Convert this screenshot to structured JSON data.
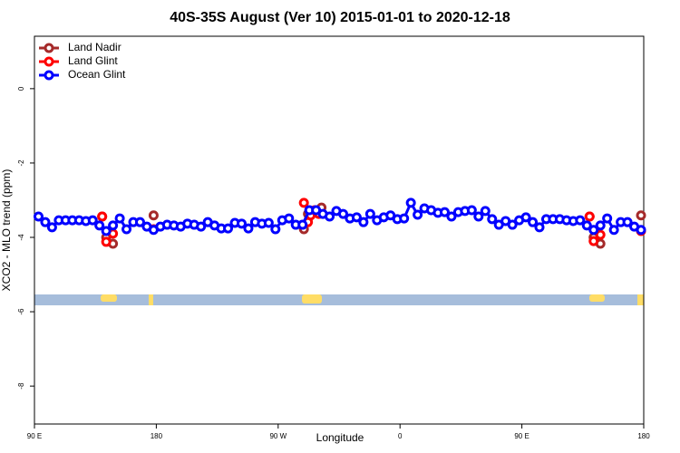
{
  "chart_data": {
    "type": "line",
    "title": "40S-35S August (Ver 10)   2015-01-01 to 2020-12-18",
    "x_label": "Longitude",
    "y_label": "XCO2 - MLO trend (ppm)",
    "xlim": [
      90,
      540
    ],
    "xticks": [
      {
        "value": 90,
        "label": "90 E"
      },
      180,
      {
        "value": 270,
        "label": "90 W"
      },
      {
        "value": 360,
        "label": "0"
      },
      {
        "value": 450,
        "label": "90 E"
      },
      {
        "value": 540,
        "label": "180"
      }
    ],
    "ylim": [
      -9.02,
      1.41
    ],
    "yticks": [
      0,
      -2,
      -4,
      -6,
      -8
    ],
    "legend": "top-left",
    "series": [
      {
        "name": "Land Nadir",
        "color": "#a52a2a",
        "mode": "markers",
        "x": [
          140,
          143,
          148,
          178,
          289,
          292,
          302,
          500,
          503,
          508,
          538
        ],
        "values": [
          -3.44,
          -4.0,
          -4.17,
          -3.41,
          -3.78,
          -3.37,
          -3.2,
          -3.44,
          -4.0,
          -4.17,
          -3.41
        ]
      },
      {
        "name": "Land Glint",
        "color": "#ff0000",
        "mode": "markers",
        "x": [
          140,
          143,
          148,
          178,
          289,
          292,
          294,
          297,
          300,
          500,
          503,
          508,
          538
        ],
        "values": [
          -3.44,
          -4.12,
          -3.9,
          -3.78,
          -3.07,
          -3.59,
          -3.41,
          -3.27,
          -3.37,
          -3.44,
          -4.1,
          -3.93,
          -3.83
        ]
      },
      {
        "name": "Ocean Glint",
        "color": "#0000ff",
        "mode": "lines+markers",
        "x": [
          93,
          98,
          103,
          108,
          113,
          118,
          123,
          128,
          133,
          138,
          143,
          148,
          153,
          158,
          163,
          168,
          173,
          178,
          183,
          188,
          193,
          198,
          203,
          208,
          213,
          218,
          223,
          228,
          233,
          238,
          243,
          248,
          253,
          258,
          263,
          268,
          273,
          278,
          283,
          288,
          293,
          298,
          303,
          308,
          313,
          318,
          323,
          328,
          333,
          338,
          343,
          348,
          353,
          358,
          363,
          368,
          373,
          378,
          383,
          388,
          393,
          398,
          403,
          408,
          413,
          418,
          423,
          428,
          433,
          438,
          443,
          448,
          453,
          458,
          463,
          468,
          473,
          478,
          483,
          488,
          493,
          498,
          503,
          508,
          513,
          518,
          523,
          528,
          533,
          538
        ],
        "values": [
          -3.44,
          -3.59,
          -3.73,
          -3.54,
          -3.54,
          -3.54,
          -3.54,
          -3.56,
          -3.54,
          -3.68,
          -3.83,
          -3.68,
          -3.49,
          -3.78,
          -3.59,
          -3.59,
          -3.71,
          -3.8,
          -3.71,
          -3.66,
          -3.68,
          -3.71,
          -3.63,
          -3.66,
          -3.71,
          -3.59,
          -3.68,
          -3.76,
          -3.76,
          -3.61,
          -3.63,
          -3.76,
          -3.59,
          -3.63,
          -3.61,
          -3.78,
          -3.54,
          -3.49,
          -3.66,
          -3.66,
          -3.27,
          -3.27,
          -3.37,
          -3.44,
          -3.29,
          -3.37,
          -3.49,
          -3.46,
          -3.59,
          -3.37,
          -3.54,
          -3.46,
          -3.41,
          -3.51,
          -3.49,
          -3.07,
          -3.39,
          -3.22,
          -3.27,
          -3.34,
          -3.32,
          -3.44,
          -3.32,
          -3.29,
          -3.27,
          -3.44,
          -3.29,
          -3.51,
          -3.66,
          -3.56,
          -3.66,
          -3.54,
          -3.46,
          -3.59,
          -3.73,
          -3.51,
          -3.51,
          -3.51,
          -3.54,
          -3.56,
          -3.54,
          -3.68,
          -3.8,
          -3.68,
          -3.49,
          -3.8,
          -3.59,
          -3.59,
          -3.71,
          -3.8
        ]
      }
    ]
  }
}
